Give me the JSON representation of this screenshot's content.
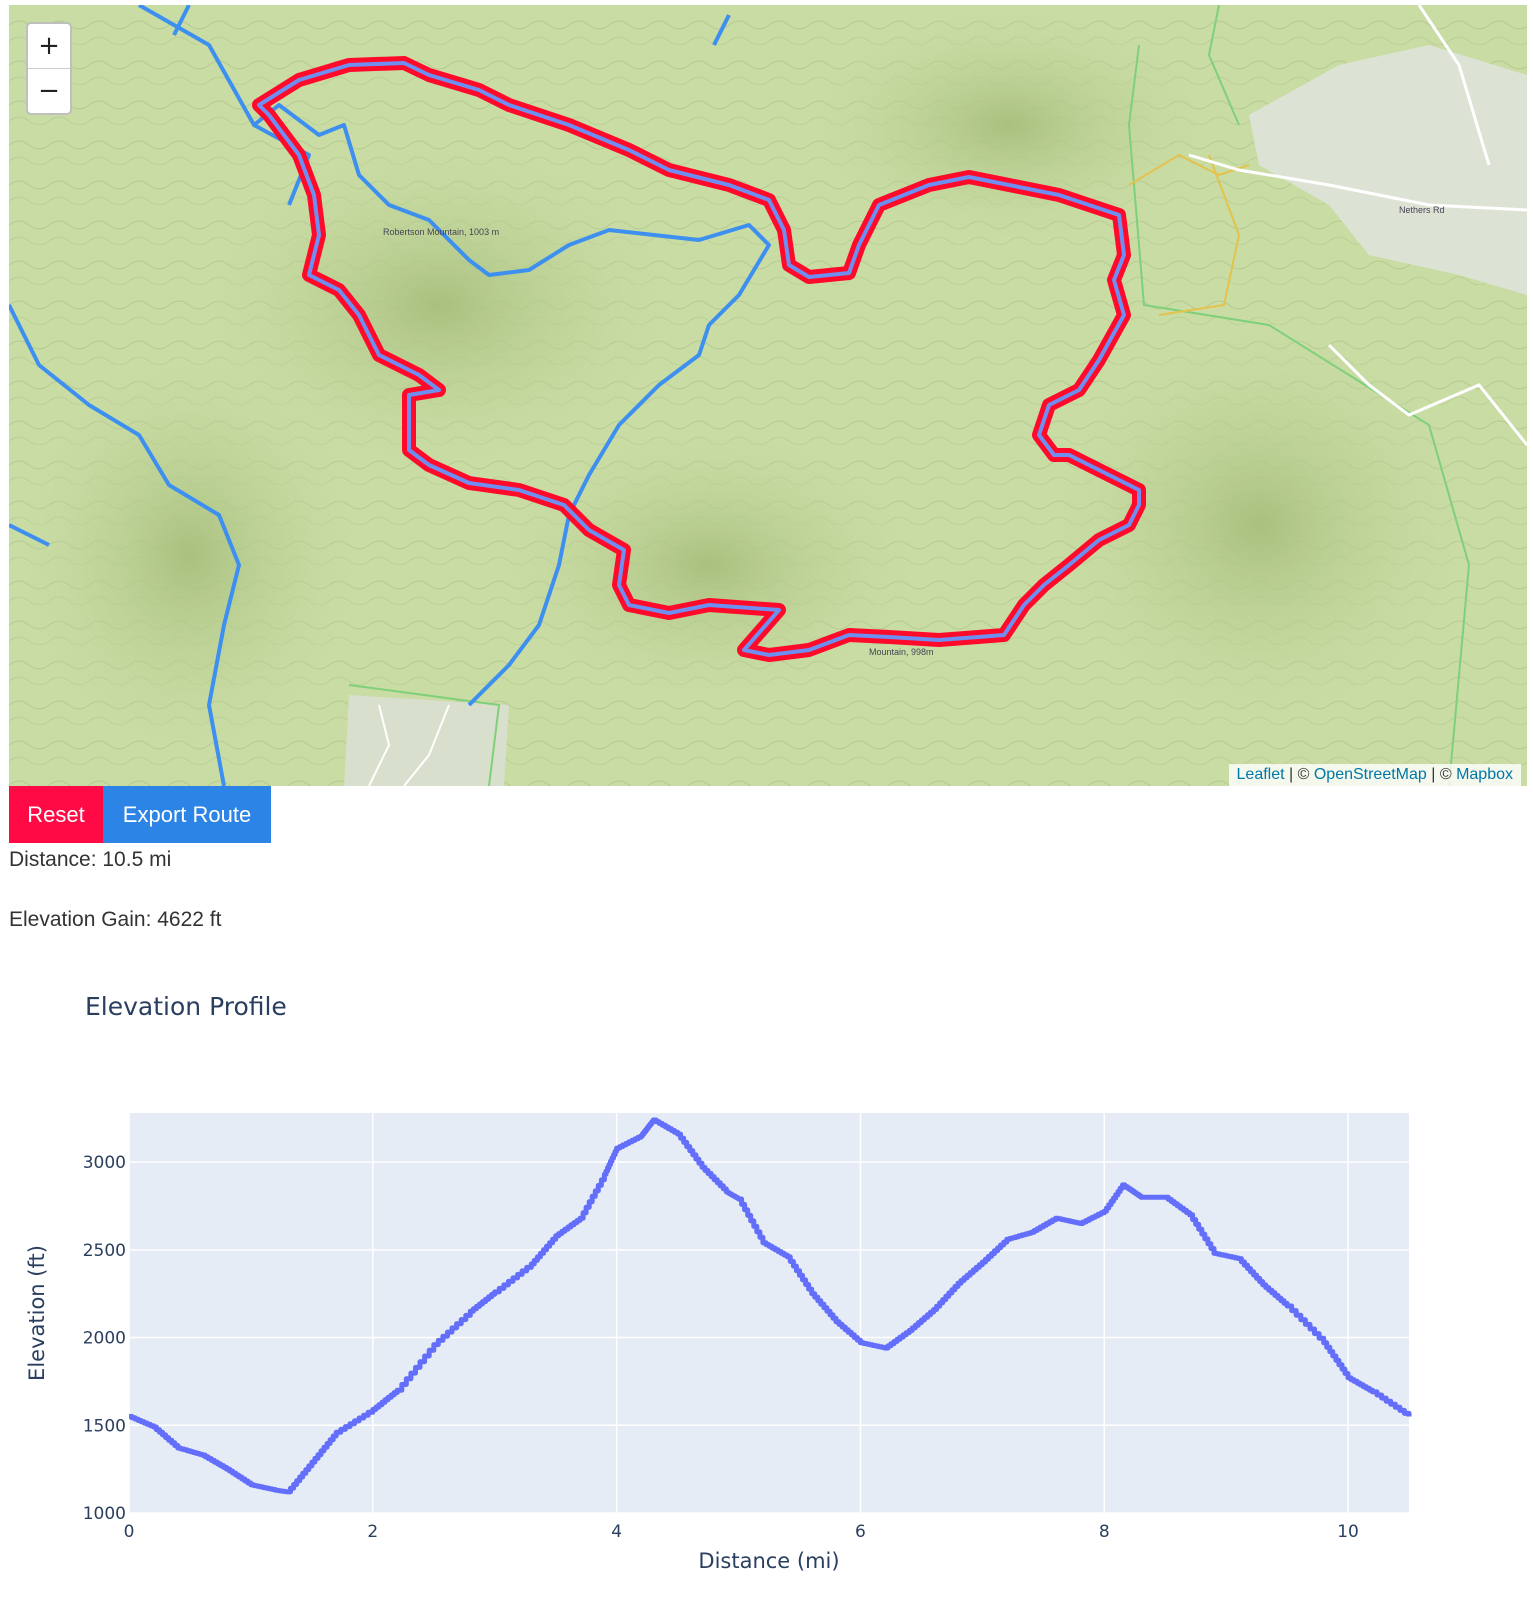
{
  "map": {
    "zoom_in_label": "+",
    "zoom_out_label": "−",
    "attribution": {
      "leaflet": "Leaflet",
      "sep1": " | © ",
      "osm": "OpenStreetMap",
      "sep2": " | © ",
      "mapbox": "Mapbox"
    },
    "labels": {
      "peak_left": "Robertson Mountain, 1003 m",
      "peak_bottom": "Mountain, 998m",
      "road": "Nethers Rd"
    },
    "colors": {
      "terrain": "#c9dca4",
      "trail": "#3d8ff0",
      "route": "#ff0a2a",
      "route_inner": "#6f8ef2"
    }
  },
  "controls": {
    "reset_label": "Reset",
    "export_label": "Export Route"
  },
  "stats": {
    "distance": "Distance: 10.5 mi",
    "elevation_gain": "Elevation Gain: 4622 ft"
  },
  "chart_data": {
    "type": "line",
    "title": "Elevation Profile",
    "xlabel": "Distance (mi)",
    "ylabel": "Elevation (ft)",
    "xlim": [
      0,
      10.5
    ],
    "ylim": [
      1000,
      3280
    ],
    "xticks": [
      0,
      2,
      4,
      6,
      8,
      10
    ],
    "yticks": [
      1000,
      1500,
      2000,
      2500,
      3000
    ],
    "grid": true,
    "line_color": "#636efa",
    "plot_bg": "#e5ecf6",
    "series": [
      {
        "x": [
          0,
          0.2,
          0.4,
          0.6,
          0.8,
          1.0,
          1.2,
          1.3,
          1.5,
          1.7,
          2.0,
          2.2,
          2.5,
          2.8,
          3.0,
          3.3,
          3.5,
          3.7,
          3.9,
          4.0,
          4.2,
          4.3,
          4.5,
          4.7,
          4.9,
          5.0,
          5.2,
          5.4,
          5.6,
          5.8,
          6.0,
          6.2,
          6.4,
          6.6,
          6.8,
          7.0,
          7.2,
          7.4,
          7.6,
          7.8,
          8.0,
          8.15,
          8.3,
          8.5,
          8.7,
          8.9,
          9.1,
          9.3,
          9.5,
          9.8,
          10.0,
          10.2,
          10.5
        ],
        "y": [
          1550,
          1490,
          1370,
          1330,
          1250,
          1160,
          1130,
          1120,
          1290,
          1460,
          1590,
          1700,
          1960,
          2150,
          2260,
          2420,
          2580,
          2680,
          2930,
          3080,
          3150,
          3240,
          3160,
          2970,
          2830,
          2790,
          2540,
          2460,
          2250,
          2090,
          1970,
          1940,
          2040,
          2160,
          2310,
          2430,
          2560,
          2600,
          2680,
          2650,
          2720,
          2870,
          2800,
          2800,
          2700,
          2480,
          2450,
          2300,
          2180,
          1970,
          1770,
          1690,
          1550
        ]
      }
    ]
  }
}
